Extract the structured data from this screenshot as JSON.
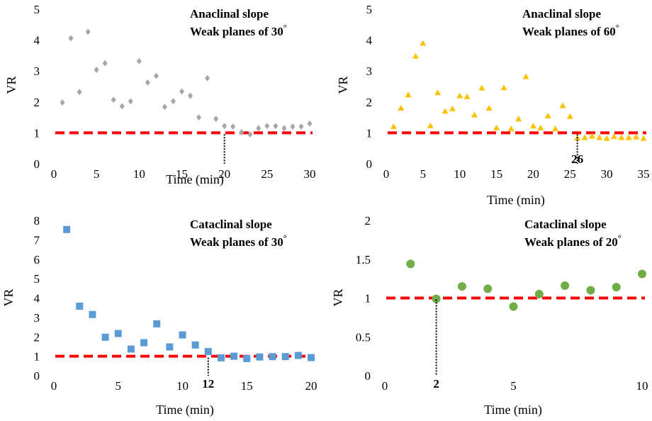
{
  "chart_data": [
    {
      "type": "scatter",
      "title": "Anaclinal slope",
      "subtitle": "Weak planes of 30",
      "degree_symbol": "°",
      "xlabel": "Time (min)",
      "ylabel": "VR",
      "xlim": [
        0,
        30
      ],
      "ylim": [
        0,
        5
      ],
      "xticks": [
        0,
        5,
        10,
        15,
        20,
        25,
        30
      ],
      "yticks": [
        0,
        1,
        2,
        3,
        4,
        5
      ],
      "marker": "diamond",
      "color": "#a6a6a6",
      "threshold": 1,
      "threshold_color": "#ff0000",
      "marker_line_x": 20,
      "marker_label": "",
      "x": [
        1,
        2,
        3,
        4,
        5,
        6,
        7,
        8,
        9,
        10,
        11,
        12,
        13,
        14,
        15,
        16,
        17,
        18,
        19,
        20,
        21,
        22,
        23,
        24,
        25,
        26,
        27,
        28,
        29,
        30
      ],
      "values": [
        1.98,
        4.06,
        2.32,
        4.27,
        3.04,
        3.25,
        2.07,
        1.86,
        2.02,
        3.32,
        2.63,
        2.84,
        1.84,
        2.02,
        2.34,
        2.2,
        1.5,
        2.77,
        1.45,
        1.22,
        1.2,
        1.02,
        0.95,
        1.15,
        1.22,
        1.22,
        1.15,
        1.2,
        1.2,
        1.3
      ]
    },
    {
      "type": "scatter",
      "title": "Anaclinal slope",
      "subtitle": "Weak planes of 60",
      "degree_symbol": "°",
      "xlabel": "Time (min)",
      "ylabel": "VR",
      "xlim": [
        0,
        35
      ],
      "ylim": [
        0,
        5
      ],
      "xticks": [
        0,
        5,
        10,
        15,
        20,
        25,
        30,
        35
      ],
      "yticks": [
        0,
        1,
        2,
        3,
        4,
        5
      ],
      "marker": "triangle",
      "color": "#ffc000",
      "threshold": 1,
      "threshold_color": "#ff0000",
      "marker_line_x": 26,
      "marker_label": "26",
      "x": [
        1,
        2,
        3,
        4,
        5,
        6,
        7,
        8,
        9,
        10,
        11,
        12,
        13,
        14,
        15,
        16,
        17,
        18,
        19,
        20,
        21,
        22,
        23,
        24,
        25,
        26,
        27,
        28,
        29,
        30,
        31,
        32,
        33,
        34,
        35
      ],
      "values": [
        1.2,
        1.8,
        2.23,
        3.48,
        3.9,
        1.23,
        2.3,
        1.7,
        1.78,
        2.2,
        2.17,
        1.58,
        2.45,
        1.8,
        1.16,
        2.46,
        1.13,
        1.45,
        2.82,
        1.22,
        1.16,
        1.55,
        1.13,
        1.88,
        1.53,
        0.83,
        0.85,
        0.9,
        0.85,
        0.82,
        0.88,
        0.85,
        0.85,
        0.87,
        0.82
      ]
    },
    {
      "type": "scatter",
      "title": "Cataclinal slope",
      "subtitle": "Weak planes of 30",
      "degree_symbol": "°",
      "xlabel": "Time (min)",
      "ylabel": "VR",
      "xlim": [
        0,
        20
      ],
      "ylim": [
        0,
        8
      ],
      "xticks": [
        0,
        5,
        10,
        15,
        20
      ],
      "yticks": [
        0,
        1,
        2,
        3,
        4,
        5,
        6,
        7,
        8
      ],
      "marker": "square",
      "color": "#5b9bd5",
      "threshold": 1,
      "threshold_color": "#ff0000",
      "marker_line_x": 12,
      "marker_label": "12",
      "x": [
        1,
        2,
        3,
        4,
        5,
        6,
        7,
        8,
        9,
        10,
        11,
        12,
        13,
        14,
        15,
        16,
        17,
        18,
        19,
        20
      ],
      "values": [
        7.53,
        3.58,
        3.15,
        1.98,
        2.17,
        1.37,
        1.7,
        2.67,
        1.48,
        2.1,
        1.58,
        1.24,
        0.92,
        1.0,
        0.88,
        0.96,
        0.98,
        0.98,
        1.04,
        0.93
      ]
    },
    {
      "type": "scatter",
      "title": "Cataclinal slope",
      "subtitle": "Weak planes of 20",
      "degree_symbol": "°",
      "xlabel": "Time (min)",
      "ylabel": "VR",
      "xlim": [
        0,
        10
      ],
      "ylim": [
        0,
        2
      ],
      "xticks": [
        0,
        5,
        10
      ],
      "yticks": [
        0,
        0.5,
        1,
        1.5,
        2
      ],
      "marker": "circle",
      "color": "#70ad47",
      "threshold": 1,
      "threshold_color": "#ff0000",
      "marker_line_x": 2,
      "marker_label": "2",
      "x": [
        1,
        2,
        3,
        4,
        5,
        6,
        7,
        8,
        9,
        10
      ],
      "values": [
        1.44,
        0.99,
        1.15,
        1.12,
        0.89,
        1.05,
        1.16,
        1.1,
        1.14,
        1.31
      ]
    }
  ]
}
